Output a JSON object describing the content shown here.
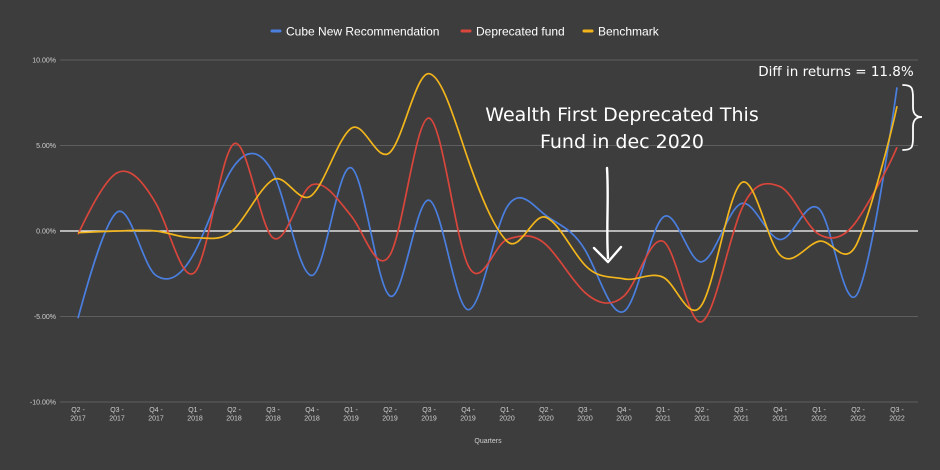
{
  "chart_data": {
    "type": "line",
    "title": "",
    "xlabel": "Quarters",
    "ylabel": "",
    "ylim": [
      -10,
      10
    ],
    "y_ticks": [
      10,
      5,
      0,
      -5,
      -10
    ],
    "y_tick_labels": [
      "10.00%",
      "5.00%",
      "0.00%",
      "-5.00%",
      "-10.00%"
    ],
    "categories": [
      [
        "Q2 -",
        "2017"
      ],
      [
        "Q3 -",
        "2017"
      ],
      [
        "Q4 -",
        "2017"
      ],
      [
        "Q1 -",
        "2018"
      ],
      [
        "Q2 -",
        "2018"
      ],
      [
        "Q3 -",
        "2018"
      ],
      [
        "Q4 -",
        "2018"
      ],
      [
        "Q1 -",
        "2019"
      ],
      [
        "Q2 -",
        "2019"
      ],
      [
        "Q3 -",
        "2019"
      ],
      [
        "Q4 -",
        "2019"
      ],
      [
        "Q1 -",
        "2020"
      ],
      [
        "Q2 -",
        "2020"
      ],
      [
        "Q3 -",
        "2020"
      ],
      [
        "Q4 -",
        "2020"
      ],
      [
        "Q1 -",
        "2021"
      ],
      [
        "Q2 -",
        "2021"
      ],
      [
        "Q3 -",
        "2021"
      ],
      [
        "Q4 -",
        "2021"
      ],
      [
        "Q1 -",
        "2022"
      ],
      [
        "Q2 -",
        "2022"
      ],
      [
        "Q3 -",
        "2022"
      ]
    ],
    "series": [
      {
        "name": "Cube New Recommendation",
        "color": "#4a7fe0",
        "values": [
          -5.1,
          1.1,
          -2.6,
          -1.2,
          3.8,
          3.4,
          -2.6,
          3.7,
          -3.8,
          1.8,
          -4.6,
          1.4,
          0.9,
          -1.1,
          -4.7,
          0.8,
          -1.8,
          1.6,
          -0.5,
          1.3,
          -3.6,
          8.4
        ]
      },
      {
        "name": "Deprecated fund",
        "color": "#d9463b",
        "values": [
          -0.2,
          3.4,
          1.6,
          -2.4,
          5.1,
          -0.4,
          2.7,
          0.9,
          -1.4,
          6.6,
          -2.0,
          -0.5,
          -0.8,
          -3.6,
          -3.8,
          -0.6,
          -5.3,
          1.2,
          2.6,
          -0.2,
          0.7,
          4.9
        ]
      },
      {
        "name": "Benchmark",
        "color": "#f2b51c",
        "values": [
          -0.1,
          0.0,
          0.0,
          -0.4,
          0.1,
          3.0,
          2.1,
          6.0,
          4.6,
          9.2,
          4.2,
          -0.6,
          0.8,
          -2.0,
          -2.8,
          -2.7,
          -4.3,
          2.8,
          -1.4,
          -0.6,
          -0.6,
          7.3
        ]
      }
    ],
    "annotations": {
      "deprecation_note_line1": "Wealth First Deprecated This",
      "deprecation_note_line2": "Fund in dec 2020",
      "diff_note": "Diff in returns = 11.8%"
    }
  }
}
